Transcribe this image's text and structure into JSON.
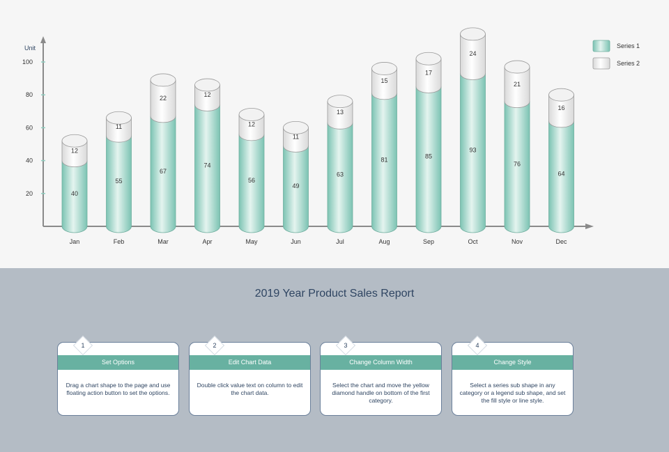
{
  "chart_data": {
    "type": "bar",
    "stacked": true,
    "style": "3d-cylinder",
    "categories": [
      "Jan",
      "Feb",
      "Mar",
      "Apr",
      "May",
      "Jun",
      "Jul",
      "Aug",
      "Sep",
      "Oct",
      "Nov",
      "Dec"
    ],
    "series": [
      {
        "name": "Series 1",
        "values": [
          40,
          55,
          67,
          74,
          56,
          49,
          63,
          81,
          85,
          93,
          76,
          64
        ],
        "color": "#8fcfc0"
      },
      {
        "name": "Series 2",
        "values": [
          12,
          11,
          22,
          12,
          12,
          11,
          13,
          15,
          17,
          24,
          21,
          16
        ],
        "color": "#e8e8e8"
      }
    ],
    "ylabel": "Unit",
    "yticks": [
      20,
      40,
      60,
      80,
      100
    ],
    "ylim": [
      0,
      120
    ],
    "grid": false,
    "legend": "top-right",
    "data_labels": true
  },
  "report": {
    "title": "2019 Year Product Sales Report",
    "steps": [
      {
        "number": "1",
        "title": "Set Options",
        "text": "Drag a chart shape to the page and use floating action button to set the options."
      },
      {
        "number": "2",
        "title": "Edit Chart Data",
        "text": "Double click value text on column to edit the chart data."
      },
      {
        "number": "3",
        "title": "Change Column Width",
        "text": "Select the chart and move the yellow diamond handle on bottom of the first category."
      },
      {
        "number": "4",
        "title": "Change Style",
        "text": "Select a series sub shape in any category or a legend sub shape, and set the fill style or line style."
      }
    ]
  }
}
